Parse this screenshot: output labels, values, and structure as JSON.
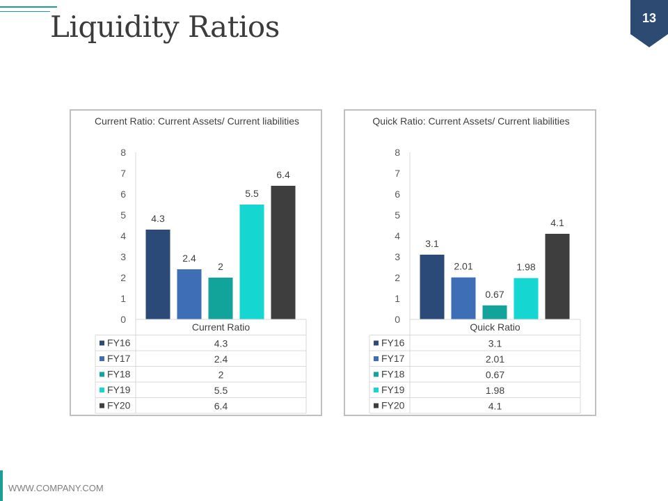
{
  "header": {
    "title": "Liquidity Ratios",
    "page_number": "13"
  },
  "footer": {
    "text": "WWW.COMPANY.COM"
  },
  "chart_data": [
    {
      "type": "bar",
      "title": "Current Ratio: Current Assets/ Current liabilities",
      "xlabel": "Current Ratio",
      "ylim": [
        0,
        8
      ],
      "yticks": [
        0,
        1,
        2,
        3,
        4,
        5,
        6,
        7,
        8
      ],
      "categories": [
        "FY16",
        "FY17",
        "FY18",
        "FY19",
        "FY20"
      ],
      "values": [
        4.3,
        2.4,
        2,
        5.5,
        6.4
      ],
      "labels": [
        "4.3",
        "2.4",
        "2",
        "5.5",
        "6.4"
      ],
      "colors": [
        "#2b4a77",
        "#3d6eb6",
        "#12a39a",
        "#15d6d1",
        "#3e3e3e"
      ],
      "data_table": true
    },
    {
      "type": "bar",
      "title": "Quick Ratio: Current Assets/ Current liabilities",
      "xlabel": "Quick Ratio",
      "ylim": [
        0,
        8
      ],
      "yticks": [
        0,
        1,
        2,
        3,
        4,
        5,
        6,
        7,
        8
      ],
      "categories": [
        "FY16",
        "FY17",
        "FY18",
        "FY19",
        "FY20"
      ],
      "values": [
        3.1,
        2.01,
        0.67,
        1.98,
        4.1
      ],
      "labels": [
        "3.1",
        "2.01",
        "0.67",
        "1.98",
        "4.1"
      ],
      "colors": [
        "#2b4a77",
        "#3d6eb6",
        "#12a39a",
        "#15d6d1",
        "#3e3e3e"
      ],
      "data_table": true
    }
  ]
}
